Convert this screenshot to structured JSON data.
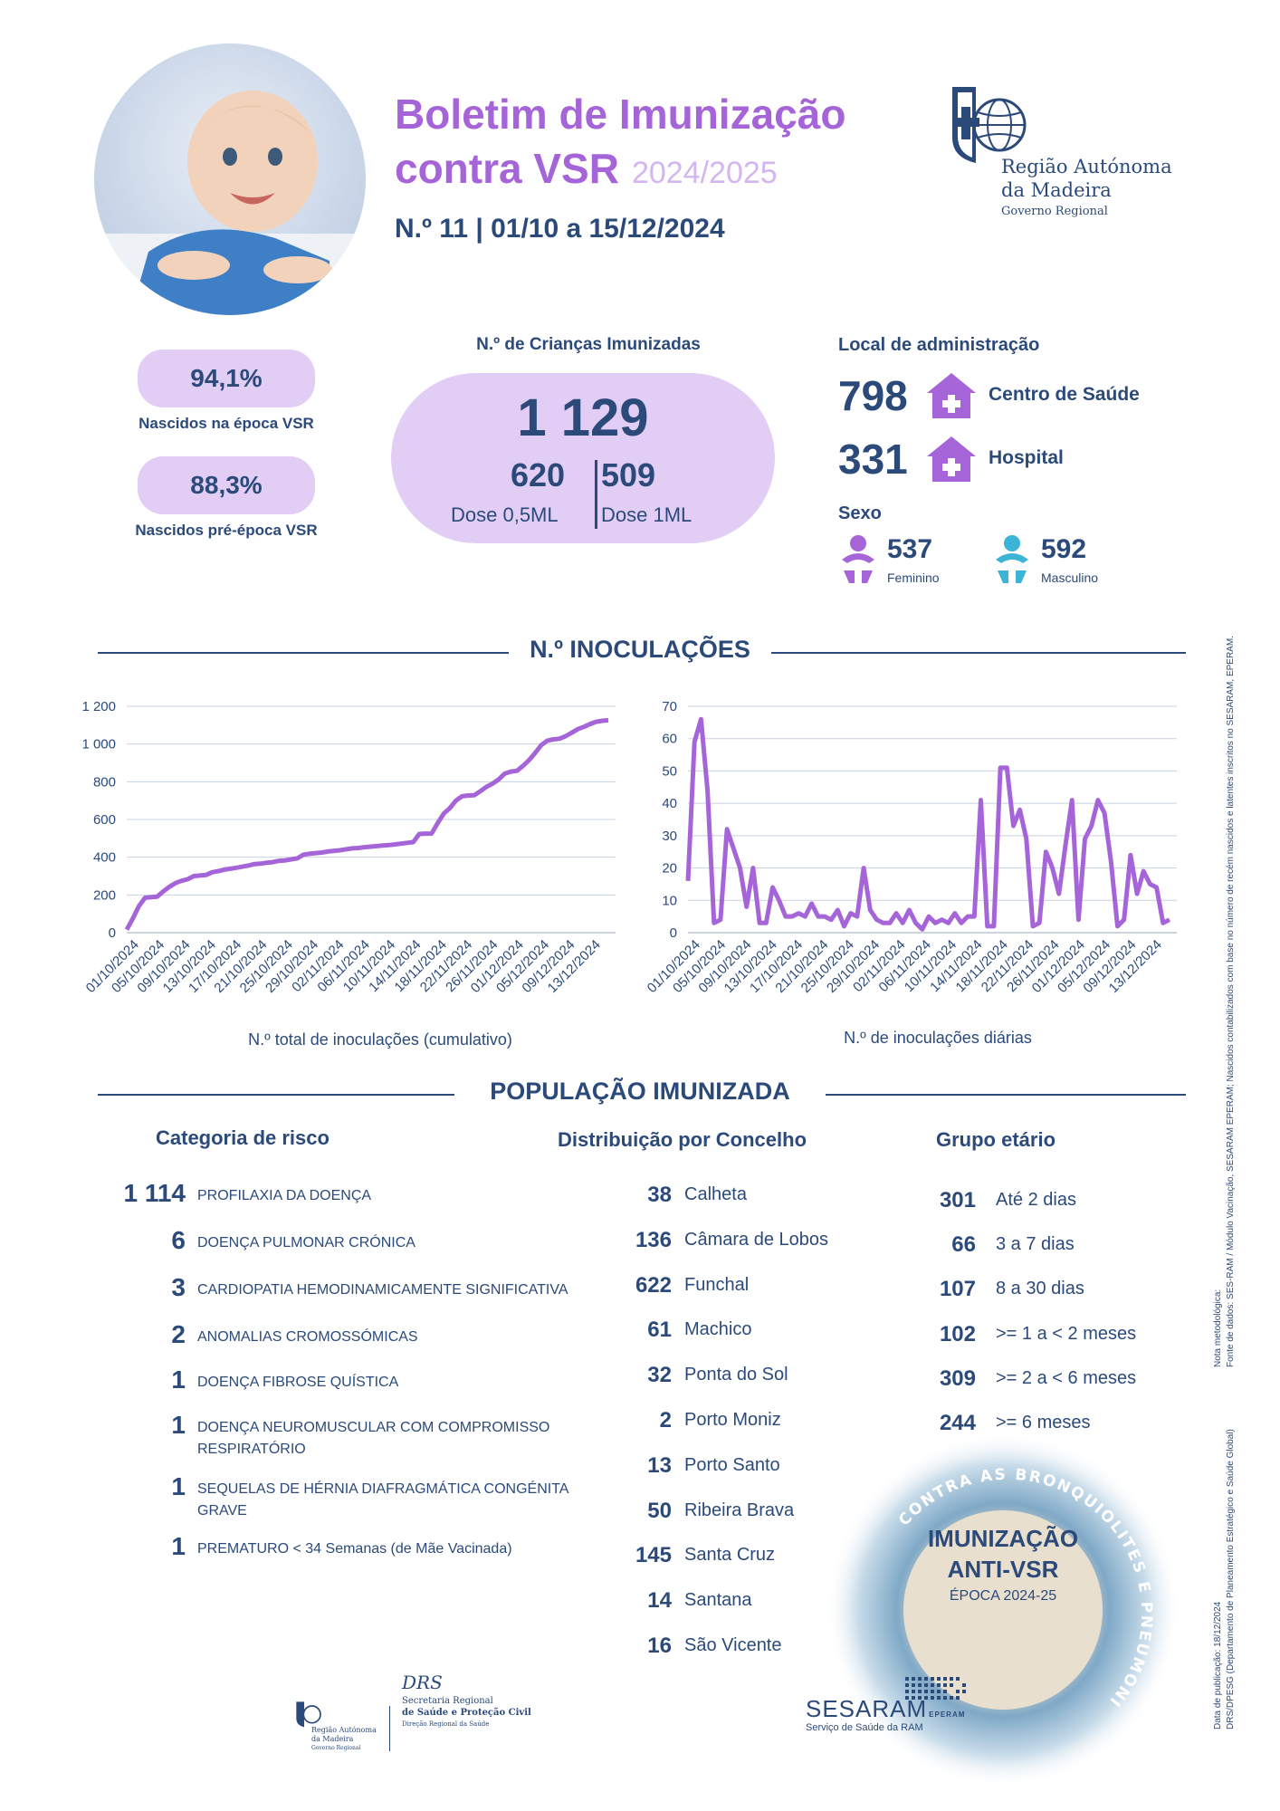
{
  "header": {
    "title_line1": "Boletim de Imunização",
    "title_line2": "contra VSR",
    "season": "2024/2025",
    "subtitle": "N.º 11 | 01/10 a 15/12/2024",
    "logo_line1": "Região Autónoma",
    "logo_line2": "da Madeira",
    "logo_line3": "Governo Regional"
  },
  "summary": {
    "pct1": "94,1%",
    "pct1_label": "Nascidos na época VSR",
    "pct2": "88,3%",
    "pct2_label": "Nascidos pré-época VSR",
    "children_label": "N.º de Crianças Imunizadas",
    "children_total": "1 129",
    "dose1_num": "620",
    "dose1_label": "Dose 0,5ML",
    "dose2_num": "509",
    "dose2_label": "Dose 1ML",
    "local_title": "Local de administração",
    "local": [
      {
        "num": "798",
        "label": "Centro de Saúde"
      },
      {
        "num": "331",
        "label": "Hospital"
      }
    ],
    "sex_title": "Sexo",
    "female_num": "537",
    "female_label": "Feminino",
    "male_num": "592",
    "male_label": "Masculino"
  },
  "colors": {
    "accent": "#a565d8",
    "pill": "#e2cdf5",
    "navy": "#2b4a7a",
    "male": "#3bb4d6"
  },
  "sections": {
    "inoculations": "N.º INOCULAÇÕES",
    "population": "POPULAÇÃO IMUNIZADA"
  },
  "chart_data": [
    {
      "type": "line",
      "xlabel": "N.º total de inoculações (cumulativo)",
      "ylim": [
        0,
        1200
      ],
      "yticks": [
        "0",
        "200",
        "400",
        "600",
        "800",
        "1 000",
        "1 200"
      ],
      "x_tick_labels": [
        "01/10/2024",
        "05/10/2024",
        "09/10/2024",
        "13/10/2024",
        "17/10/2024",
        "21/10/2024",
        "25/10/2024",
        "29/10/2024",
        "02/11/2024",
        "06/11/2024",
        "10/11/2024",
        "14/11/2024",
        "18/11/2024",
        "22/11/2024",
        "26/11/2024",
        "01/12/2024",
        "05/12/2024",
        "09/12/2024",
        "13/12/2024"
      ],
      "values": [
        16,
        75,
        141,
        185,
        188,
        191,
        219,
        243,
        263,
        275,
        283,
        300,
        303,
        306,
        320,
        326,
        334,
        339,
        344,
        350,
        356,
        364,
        366,
        371,
        374,
        381,
        383,
        389,
        394,
        414,
        418,
        422,
        425,
        430,
        434,
        437,
        442,
        447,
        449,
        453,
        456,
        459,
        462,
        464,
        468,
        472,
        476,
        480,
        523,
        525,
        525,
        580,
        631,
        660,
        700,
        723,
        727,
        728,
        750,
        773,
        790,
        812,
        843,
        854,
        858,
        884,
        915,
        953,
        994,
        1018,
        1025,
        1028,
        1042,
        1060,
        1079,
        1091,
        1106,
        1118,
        1123,
        1126
      ]
    },
    {
      "type": "line",
      "xlabel": "N.º de inoculações diárias",
      "ylim": [
        0,
        70
      ],
      "yticks": [
        "0",
        "10",
        "20",
        "30",
        "40",
        "50",
        "60",
        "70"
      ],
      "x_tick_labels": [
        "01/10/2024",
        "05/10/2024",
        "09/10/2024",
        "13/10/2024",
        "17/10/2024",
        "21/10/2024",
        "25/10/2024",
        "29/10/2024",
        "02/11/2024",
        "06/11/2024",
        "10/11/2024",
        "14/11/2024",
        "18/11/2024",
        "22/11/2024",
        "26/11/2024",
        "01/12/2024",
        "05/12/2024",
        "09/12/2024",
        "13/12/2024"
      ],
      "values": [
        16,
        59,
        66,
        44,
        3,
        4,
        32,
        26,
        20,
        8,
        20,
        3,
        3,
        14,
        10,
        5,
        5,
        6,
        5,
        9,
        5,
        5,
        4,
        7,
        2,
        6,
        5,
        20,
        7,
        4,
        3,
        3,
        6,
        3,
        7,
        3,
        1,
        5,
        3,
        4,
        3,
        6,
        3,
        5,
        5,
        41,
        2,
        2,
        51,
        51,
        33,
        38,
        29,
        2,
        3,
        25,
        20,
        12,
        27,
        41,
        4,
        29,
        33,
        41,
        37,
        22,
        2,
        4,
        24,
        12,
        19,
        15,
        14,
        3,
        4
      ]
    }
  ],
  "risk": {
    "title": "Categoria de risco",
    "items": [
      {
        "num": "1 114",
        "label": "PROFILAXIA DA DOENÇA"
      },
      {
        "num": "6",
        "label": "DOENÇA PULMONAR CRÓNICA"
      },
      {
        "num": "3",
        "label": "CARDIOPATIA HEMODINAMICAMENTE SIGNIFICATIVA"
      },
      {
        "num": "2",
        "label": "ANOMALIAS CROMOSSÓMICAS"
      },
      {
        "num": "1",
        "label": "DOENÇA FIBROSE QUÍSTICA"
      },
      {
        "num": "1",
        "label": "DOENÇA NEUROMUSCULAR COM COMPROMISSO RESPIRATÓRIO"
      },
      {
        "num": "1",
        "label": "SEQUELAS DE HÉRNIA DIAFRAGMÁTICA CONGÉNITA GRAVE"
      },
      {
        "num": "1",
        "label": "PREMATURO < 34 Semanas (de Mãe Vacinada)"
      }
    ]
  },
  "concelho": {
    "title": "Distribuição por Concelho",
    "items": [
      {
        "num": "38",
        "label": "Calheta"
      },
      {
        "num": "136",
        "label": "Câmara de Lobos"
      },
      {
        "num": "622",
        "label": "Funchal"
      },
      {
        "num": "61",
        "label": "Machico"
      },
      {
        "num": "32",
        "label": "Ponta do Sol"
      },
      {
        "num": "2",
        "label": "Porto Moniz"
      },
      {
        "num": "13",
        "label": "Porto Santo"
      },
      {
        "num": "50",
        "label": "Ribeira Brava"
      },
      {
        "num": "145",
        "label": "Santa Cruz"
      },
      {
        "num": "14",
        "label": "Santana"
      },
      {
        "num": "16",
        "label": "São Vicente"
      }
    ]
  },
  "age": {
    "title": "Grupo etário",
    "items": [
      {
        "num": "301",
        "label": "Até 2 dias"
      },
      {
        "num": "66",
        "label": "3 a 7 dias"
      },
      {
        "num": "107",
        "label": "8 a 30 dias"
      },
      {
        "num": "102",
        "label": ">= 1 a < 2 meses"
      },
      {
        "num": "309",
        "label": ">= 2 a < 6 meses"
      },
      {
        "num": "244",
        "label": ">= 6 meses"
      }
    ]
  },
  "badge": {
    "arc_text": "CONTRA AS BRONQUIOLITES E PNEUMONIAS",
    "line1": "IMUNIZAÇÃO",
    "line2": "ANTI-VSR",
    "line3": "ÉPOCA 2024-25"
  },
  "side_notes": {
    "note1": "Nota metodológica:",
    "note2": "Fonte de dados: SES-RAM / Módulo Vacinação, SESARAM EPERAM; Nascidos contabilizados com base no número de recém nascidos e latentes inscritos no SESARAM, EPERAM.",
    "note3": "Data de publicação: 18/12/2024",
    "note4": "DRS/DPESG (Departamento de Planeamento Estratégico e Saúde Global)"
  },
  "footer": {
    "rgn_line1": "Região Autónoma",
    "rgn_line2": "da Madeira",
    "rgn_line3": "Governo Regional",
    "drs_logo": "DRS",
    "drs_line1": "Secretaria Regional",
    "drs_line2": "de Saúde e Proteção Civil",
    "drs_line3": "Direção Regional da Saúde",
    "sesaram": "SESARAM",
    "sesaram_suffix": "EPERAM",
    "sesaram_sub": "Serviço de Saúde da RAM"
  }
}
